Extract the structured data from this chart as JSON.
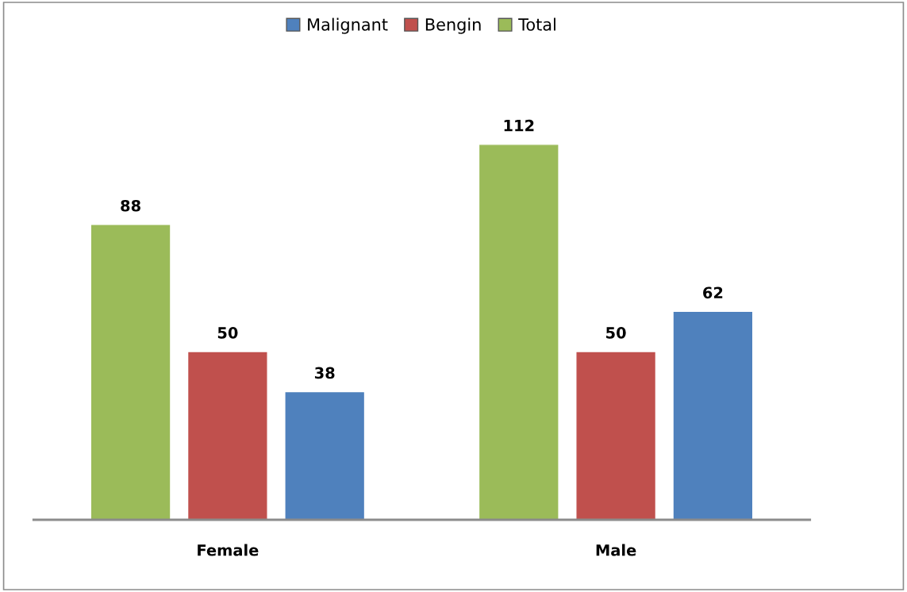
{
  "chart_data": {
    "type": "bar",
    "categories": [
      "Female",
      "Male"
    ],
    "series": [
      {
        "name": "Total",
        "color": "#9bbb59",
        "values": [
          88,
          112
        ]
      },
      {
        "name": "Bengin",
        "color": "#c0504d",
        "values": [
          50,
          50
        ]
      },
      {
        "name": "Malignant",
        "color": "#4f81bd",
        "values": [
          38,
          62
        ]
      }
    ],
    "data_labels": true,
    "legend": "top",
    "grid": false
  }
}
